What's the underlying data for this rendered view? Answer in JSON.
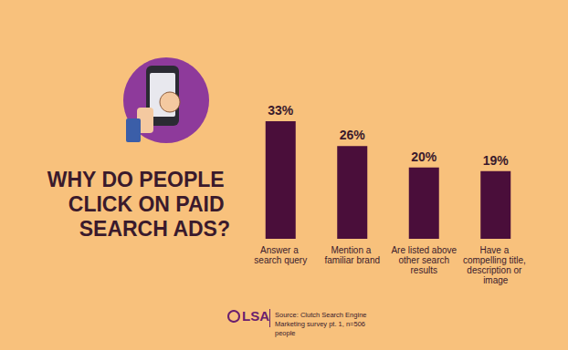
{
  "chart_data": {
    "type": "bar",
    "title": "WHY DO PEOPLE CLICK ON PAID SEARCH ADS?",
    "categories": [
      "Answer a search query",
      "Mention a familiar brand",
      "Are listed above other search results",
      "Have a compelling title, description or image"
    ],
    "values": [
      33,
      26,
      20,
      19
    ],
    "value_labels": [
      "33%",
      "26%",
      "20%",
      "19%"
    ],
    "data_labels": true,
    "color": "#4a0e3a",
    "ylim": [
      0,
      33
    ],
    "grid": false,
    "tick_labels": "x",
    "annotations": [
      "LSA",
      "Source: Clutch Search Engine Marketing survey pt. 1, n=506 people"
    ]
  }
}
